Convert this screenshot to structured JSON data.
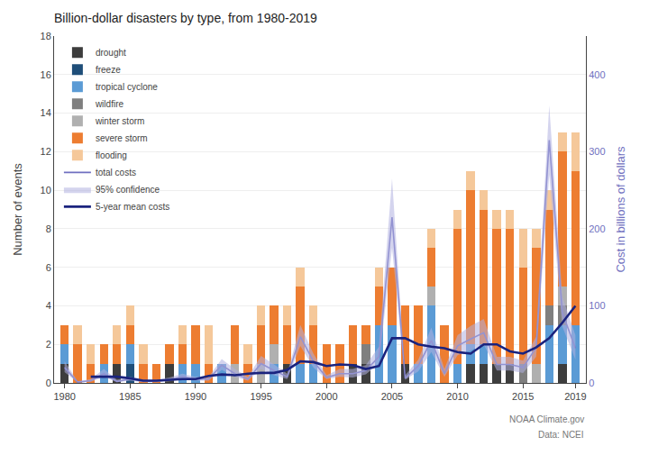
{
  "chart_data": {
    "type": "bar",
    "stacked": true,
    "title": "Billion-dollar disasters by type, from 1980-2019",
    "ylabel": "Number of events",
    "y2label": "Cost in billions of dollars",
    "annotations": [
      "NOAA Climate.gov",
      "Data: NCEI"
    ],
    "x": [
      1980,
      1981,
      1982,
      1983,
      1984,
      1985,
      1986,
      1987,
      1988,
      1989,
      1990,
      1991,
      1992,
      1993,
      1994,
      1995,
      1996,
      1997,
      1998,
      1999,
      2000,
      2001,
      2002,
      2003,
      2004,
      2005,
      2006,
      2007,
      2008,
      2009,
      2010,
      2011,
      2012,
      2013,
      2014,
      2015,
      2016,
      2017,
      2018,
      2019
    ],
    "xlim": [
      1979.2,
      2019.8
    ],
    "xticks": [
      1980,
      1985,
      1990,
      1995,
      2000,
      2005,
      2010,
      2015,
      2019
    ],
    "ylim": [
      0,
      18
    ],
    "yticks": [
      0,
      2,
      4,
      6,
      8,
      10,
      12,
      14,
      16,
      18
    ],
    "y2lim": [
      0,
      450
    ],
    "y2ticks": [
      0,
      100,
      200,
      300,
      400
    ],
    "grid": true,
    "legend": "upper left",
    "series": [
      {
        "name": "drought",
        "type": "bar",
        "color": "#3d3d3d",
        "values": [
          1,
          0,
          0,
          0,
          1,
          0,
          0,
          0,
          1,
          0,
          0,
          0,
          0,
          0,
          0,
          0,
          0,
          1,
          0,
          0,
          0,
          0,
          1,
          1,
          0,
          0,
          1,
          0,
          0,
          0,
          0,
          1,
          1,
          1,
          1,
          0,
          0,
          0,
          1,
          0
        ]
      },
      {
        "name": "freeze",
        "type": "bar",
        "color": "#1f4e79",
        "values": [
          0,
          0,
          0,
          0,
          0,
          1,
          0,
          0,
          0,
          0,
          0,
          0,
          0,
          0,
          0,
          0,
          0,
          0,
          0,
          0,
          0,
          0,
          0,
          0,
          0,
          0,
          0,
          0,
          0,
          0,
          0,
          0,
          0,
          0,
          0,
          0,
          0,
          0,
          0,
          0
        ]
      },
      {
        "name": "tropical cyclone",
        "type": "bar",
        "color": "#5b9bd5",
        "values": [
          1,
          0,
          0,
          1,
          0,
          1,
          0,
          0,
          0,
          1,
          1,
          0,
          1,
          0,
          0,
          0,
          1,
          0,
          1,
          1,
          0,
          0,
          0,
          0,
          3,
          3,
          0,
          1,
          4,
          0,
          1,
          1,
          1,
          0,
          0,
          0,
          0,
          3,
          2,
          3
        ]
      },
      {
        "name": "wildfire",
        "type": "bar",
        "color": "#7f7f7f",
        "values": [
          0,
          0,
          0,
          0,
          0,
          0,
          0,
          0,
          0,
          0,
          0,
          0,
          0,
          0,
          0,
          0,
          0,
          0,
          0,
          0,
          0,
          0,
          0,
          1,
          0,
          0,
          0,
          0,
          0,
          0,
          0,
          0,
          0,
          0,
          0,
          1,
          0,
          1,
          1,
          0
        ]
      },
      {
        "name": "winter storm",
        "type": "bar",
        "color": "#b0b0b0",
        "values": [
          0,
          0,
          0,
          0,
          0,
          0,
          0,
          0,
          0,
          0,
          0,
          0,
          0,
          1,
          0,
          1,
          1,
          0,
          0,
          0,
          0,
          0,
          0,
          0,
          0,
          0,
          0,
          0,
          1,
          0,
          0,
          0,
          0,
          0,
          0,
          0,
          1,
          0,
          1,
          0
        ]
      },
      {
        "name": "severe storm",
        "type": "bar",
        "color": "#ed7d31",
        "values": [
          1,
          2,
          1,
          1,
          1,
          1,
          1,
          1,
          1,
          1,
          2,
          1,
          0,
          2,
          1,
          2,
          2,
          2,
          4,
          2,
          2,
          2,
          2,
          1,
          2,
          3,
          3,
          3,
          2,
          3,
          7,
          8,
          7,
          7,
          7,
          5,
          6,
          5,
          7,
          8
        ]
      },
      {
        "name": "flooding",
        "type": "bar",
        "color": "#f5c89a",
        "values": [
          0,
          1,
          1,
          0,
          1,
          1,
          1,
          0,
          0,
          1,
          0,
          2,
          0,
          0,
          1,
          1,
          0,
          1,
          1,
          1,
          0,
          0,
          0,
          0,
          1,
          0,
          0,
          0,
          1,
          0,
          1,
          1,
          1,
          1,
          1,
          2,
          1,
          1,
          1,
          2
        ]
      },
      {
        "name": "total costs",
        "type": "line",
        "axis": "y2",
        "color": "#7070c0",
        "values": [
          20,
          1,
          3,
          12,
          2,
          5,
          2,
          2,
          4,
          8,
          5,
          5,
          23,
          12,
          5,
          25,
          16,
          8,
          60,
          28,
          7,
          12,
          12,
          16,
          34,
          215,
          6,
          22,
          55,
          12,
          48,
          57,
          65,
          24,
          24,
          20,
          46,
          315,
          91,
          45
        ]
      },
      {
        "name": "95% confidence",
        "type": "band",
        "axis": "y2",
        "color": "#b0b0e0",
        "lower": [
          14,
          0.5,
          1.5,
          8,
          1,
          3,
          1,
          1,
          2,
          5,
          3,
          3,
          17,
          8,
          3,
          18,
          10,
          5,
          48,
          20,
          5,
          8,
          7,
          11,
          25,
          175,
          4,
          15,
          40,
          8,
          36,
          42,
          50,
          16,
          16,
          13,
          34,
          270,
          73,
          30
        ],
        "upper": [
          28,
          2,
          5,
          18,
          4,
          8,
          4,
          4,
          7,
          12,
          8,
          8,
          31,
          18,
          8,
          35,
          24,
          12,
          75,
          38,
          10,
          18,
          18,
          23,
          47,
          265,
          10,
          30,
          72,
          18,
          62,
          74,
          83,
          34,
          34,
          29,
          60,
          360,
          112,
          62
        ]
      },
      {
        "name": "5-year mean costs",
        "type": "line",
        "axis": "y2",
        "color": "#1a237e",
        "values": [
          null,
          null,
          8,
          8,
          8,
          6,
          3,
          3,
          4,
          5,
          5,
          9,
          11,
          10,
          12,
          13,
          13,
          17,
          28,
          27,
          22,
          24,
          23,
          18,
          22,
          58,
          58,
          50,
          47,
          45,
          40,
          38,
          50,
          50,
          41,
          38,
          46,
          58,
          78,
          100
        ]
      }
    ]
  }
}
